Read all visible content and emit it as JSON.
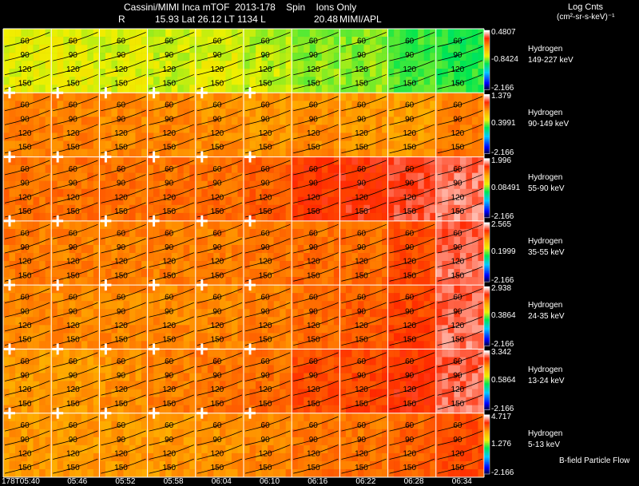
{
  "header": {
    "title": "Cassini/MIMI Inca mTOF  2013-178    Spin    Ions Only",
    "r_label": "R",
    "position_info": "15.93 Lat 26.12 LT 1134 L",
    "l_value": "20.48",
    "credit": "MIMI/APL",
    "units_title": "Log Cnts",
    "units": "(cm²-sr-s-keV)⁻¹"
  },
  "footer": {
    "bfield_note": "B-field Particle Flow"
  },
  "colors": {
    "background": "#000000",
    "grid": "#ffffff",
    "contour": "#000000"
  },
  "chart_data": {
    "type": "heatmap",
    "species": "Hydrogen",
    "time_labels": [
      "178T05:40",
      "05:46",
      "05:52",
      "05:58",
      "06:04",
      "06:10",
      "06:16",
      "06:22",
      "06:28",
      "06:34"
    ],
    "contour_labels": [
      "60",
      "90",
      "120",
      "150"
    ],
    "colorscale": "rainbow (black-blue-cyan-green-yellow-orange-red-white)",
    "rows": [
      {
        "label": "Hydrogen",
        "energy": "149-227 keV",
        "cb_max": "0.4807",
        "cb_mid": "-0.8424",
        "cb_min": "-2.166",
        "levels": [
          0.58,
          0.58,
          0.57,
          0.56,
          0.57,
          0.55,
          0.52,
          0.52,
          0.48,
          0.46
        ]
      },
      {
        "label": "Hydrogen",
        "energy": "90-149 keV",
        "cb_max": "1.379",
        "cb_mid": "0.3991",
        "cb_min": "-2.166",
        "levels": [
          0.77,
          0.77,
          0.76,
          0.76,
          0.75,
          0.74,
          0.75,
          0.74,
          0.73,
          0.77
        ]
      },
      {
        "label": "Hydrogen",
        "energy": "55-90 keV",
        "cb_max": "1.996",
        "cb_mid": "0.08491",
        "cb_min": "-2.166",
        "levels": [
          0.79,
          0.79,
          0.79,
          0.79,
          0.79,
          0.81,
          0.86,
          0.87,
          0.89,
          0.92
        ]
      },
      {
        "label": "Hydrogen",
        "energy": "35-55 keV",
        "cb_max": "2.565",
        "cb_mid": "0.1999",
        "cb_min": "-2.166",
        "levels": [
          0.78,
          0.77,
          0.77,
          0.77,
          0.77,
          0.78,
          0.79,
          0.79,
          0.83,
          0.91
        ]
      },
      {
        "label": "Hydrogen",
        "energy": "24-35 keV",
        "cb_max": "2.938",
        "cb_mid": "0.3864",
        "cb_min": "-2.166",
        "levels": [
          0.76,
          0.76,
          0.76,
          0.76,
          0.76,
          0.77,
          0.79,
          0.81,
          0.84,
          0.91
        ]
      },
      {
        "label": "Hydrogen",
        "energy": "13-24 keV",
        "cb_max": "3.342",
        "cb_mid": "0.5864",
        "cb_min": "-2.166",
        "levels": [
          0.74,
          0.74,
          0.75,
          0.77,
          0.78,
          0.79,
          0.83,
          0.84,
          0.86,
          0.91
        ]
      },
      {
        "label": "Hydrogen",
        "energy": "5-13 keV",
        "cb_max": "4.717",
        "cb_mid": "1.276",
        "cb_min": "-2.166",
        "levels": [
          0.74,
          0.74,
          0.74,
          0.74,
          0.75,
          0.76,
          0.78,
          0.78,
          0.8,
          0.83
        ]
      }
    ]
  }
}
